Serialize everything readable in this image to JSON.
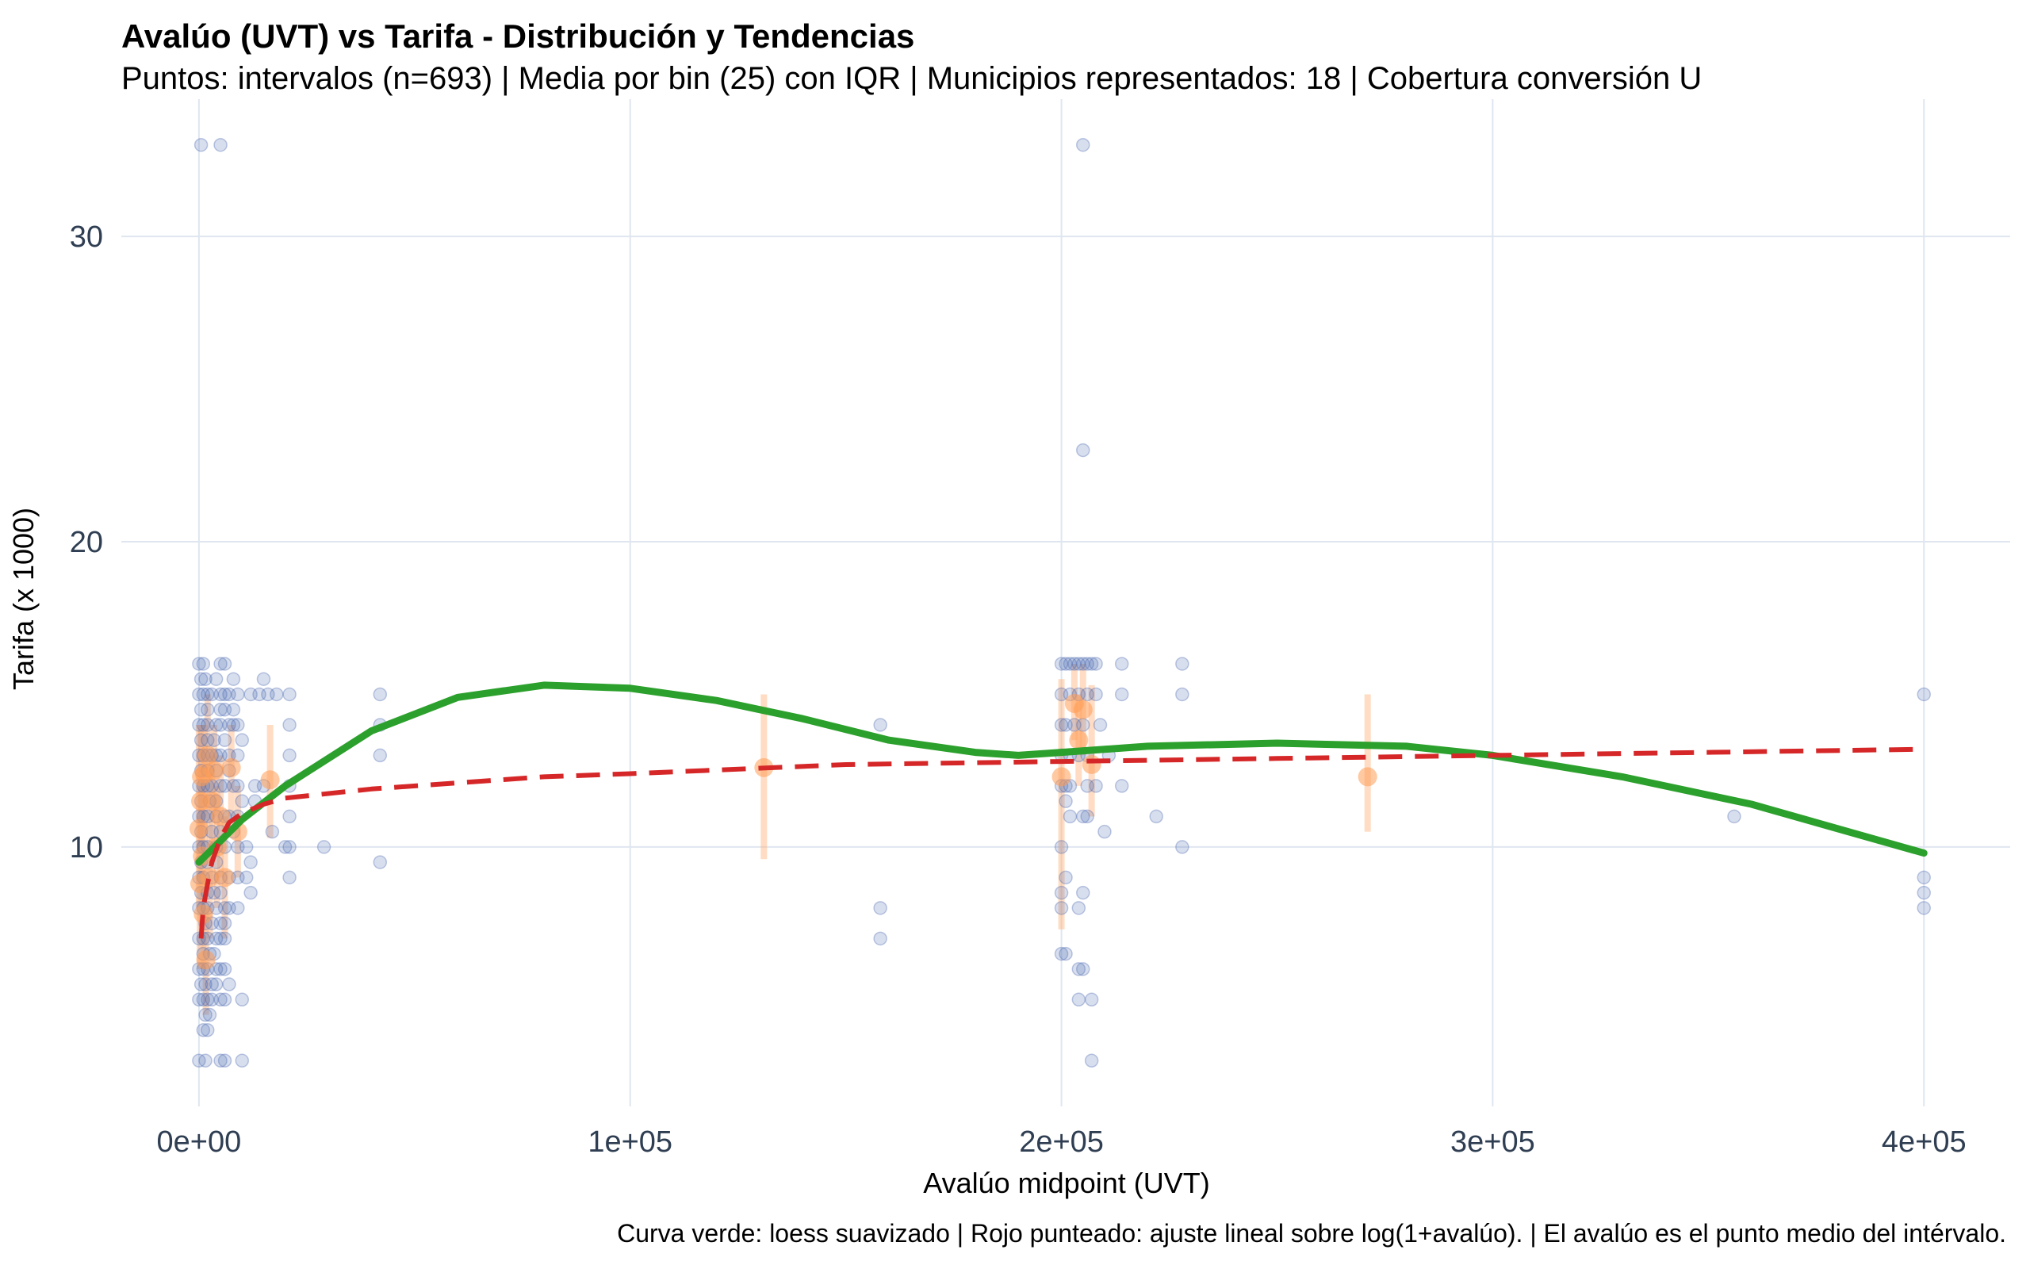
{
  "chart_data": {
    "type": "scatter",
    "title": "Avalúo (UVT) vs Tarifa - Distribución y Tendencias",
    "subtitle": "Puntos: intervalos (n=693) | Media por bin (25) con IQR | Municipios representados: 18 | Cobertura conversión U",
    "xlabel": "Avalúo midpoint (UVT)",
    "ylabel": "Tarifa (x 1000)",
    "caption": "Curva verde: loess suavizado | Rojo punteado: ajuste lineal sobre log(1+avalúo). | El avalúo es el punto medio del intérvalo.",
    "xlim": [
      -18000,
      420000
    ],
    "ylim": [
      1.5,
      34.5
    ],
    "x_ticks": [
      0,
      100000,
      200000,
      300000,
      400000
    ],
    "x_tick_labels": [
      "0e+00",
      "1e+05",
      "2e+05",
      "3e+05",
      "4e+05"
    ],
    "y_ticks": [
      10,
      20,
      30
    ],
    "y_tick_labels": [
      "10",
      "20",
      "30"
    ],
    "grid": true,
    "colors": {
      "points": "#4a67b0",
      "bin_means": "#ff9c55",
      "iqr": "#ffb27a",
      "loess": "#2ca02c",
      "log_fit": "#d62728",
      "grid": "#dfe6f0",
      "tick_text": "#2f3e52"
    },
    "series": [
      {
        "name": "intervalos",
        "kind": "points",
        "points": [
          [
            0,
            3
          ],
          [
            1500,
            3
          ],
          [
            5000,
            3
          ],
          [
            6000,
            3
          ],
          [
            10000,
            3
          ],
          [
            500,
            33
          ],
          [
            5000,
            33
          ],
          [
            1000,
            4
          ],
          [
            2000,
            4
          ],
          [
            1500,
            4.5
          ],
          [
            2500,
            4.5
          ],
          [
            0,
            5
          ],
          [
            1000,
            5
          ],
          [
            2000,
            5
          ],
          [
            3000,
            5
          ],
          [
            5000,
            5
          ],
          [
            6000,
            5
          ],
          [
            10000,
            5
          ],
          [
            500,
            5.5
          ],
          [
            1500,
            5.5
          ],
          [
            3000,
            5.5
          ],
          [
            4000,
            5.5
          ],
          [
            7000,
            5.5
          ],
          [
            0,
            6
          ],
          [
            1000,
            6
          ],
          [
            2000,
            6
          ],
          [
            4000,
            6
          ],
          [
            5000,
            6
          ],
          [
            6000,
            6
          ],
          [
            1000,
            6.5
          ],
          [
            2500,
            6.5
          ],
          [
            3500,
            6.5
          ],
          [
            0,
            7
          ],
          [
            1000,
            7
          ],
          [
            2000,
            7
          ],
          [
            4000,
            7
          ],
          [
            5000,
            7
          ],
          [
            6000,
            7
          ],
          [
            1500,
            7.5
          ],
          [
            3000,
            7.5
          ],
          [
            5000,
            7.5
          ],
          [
            6000,
            7.5
          ],
          [
            0,
            8
          ],
          [
            1000,
            8
          ],
          [
            2000,
            8
          ],
          [
            4000,
            8
          ],
          [
            6000,
            8
          ],
          [
            7000,
            8
          ],
          [
            9000,
            8
          ],
          [
            500,
            8.5
          ],
          [
            2000,
            8.5
          ],
          [
            3500,
            8.5
          ],
          [
            5000,
            8.5
          ],
          [
            12000,
            8.5
          ],
          [
            0,
            9
          ],
          [
            1000,
            9
          ],
          [
            3000,
            9
          ],
          [
            5000,
            9
          ],
          [
            7000,
            9
          ],
          [
            9000,
            9
          ],
          [
            11000,
            9
          ],
          [
            21000,
            9
          ],
          [
            500,
            9.5
          ],
          [
            2000,
            9.5
          ],
          [
            4000,
            9.5
          ],
          [
            12000,
            9.5
          ],
          [
            42000,
            9.5
          ],
          [
            0,
            10
          ],
          [
            1000,
            10
          ],
          [
            2000,
            10
          ],
          [
            4000,
            10
          ],
          [
            6000,
            10
          ],
          [
            9000,
            10
          ],
          [
            11000,
            10
          ],
          [
            20000,
            10
          ],
          [
            21000,
            10
          ],
          [
            29000,
            10
          ],
          [
            500,
            10.5
          ],
          [
            3000,
            10.5
          ],
          [
            5000,
            10.5
          ],
          [
            8000,
            10.5
          ],
          [
            17000,
            10.5
          ],
          [
            0,
            11
          ],
          [
            1000,
            11
          ],
          [
            2000,
            11
          ],
          [
            4000,
            11
          ],
          [
            6000,
            11
          ],
          [
            7000,
            11
          ],
          [
            9000,
            11
          ],
          [
            21000,
            11
          ],
          [
            500,
            11.5
          ],
          [
            2500,
            11.5
          ],
          [
            4000,
            11.5
          ],
          [
            10000,
            11.5
          ],
          [
            13000,
            11.5
          ],
          [
            0,
            12
          ],
          [
            1000,
            12
          ],
          [
            2000,
            12
          ],
          [
            3000,
            12
          ],
          [
            5000,
            12
          ],
          [
            6000,
            12
          ],
          [
            8000,
            12
          ],
          [
            9000,
            12
          ],
          [
            13000,
            12
          ],
          [
            15000,
            12
          ],
          [
            21000,
            12
          ],
          [
            500,
            12.5
          ],
          [
            2000,
            12.5
          ],
          [
            4000,
            12.5
          ],
          [
            7000,
            12.5
          ],
          [
            0,
            13
          ],
          [
            1000,
            13
          ],
          [
            2000,
            13
          ],
          [
            3000,
            13
          ],
          [
            4000,
            13
          ],
          [
            5000,
            13
          ],
          [
            7000,
            13
          ],
          [
            9000,
            13
          ],
          [
            21000,
            13
          ],
          [
            42000,
            13
          ],
          [
            500,
            13.5
          ],
          [
            2000,
            13.5
          ],
          [
            3500,
            13.5
          ],
          [
            6000,
            13.5
          ],
          [
            10000,
            13.5
          ],
          [
            0,
            14
          ],
          [
            1000,
            14
          ],
          [
            2000,
            14
          ],
          [
            4000,
            14
          ],
          [
            5000,
            14
          ],
          [
            7000,
            14
          ],
          [
            8000,
            14
          ],
          [
            9000,
            14
          ],
          [
            21000,
            14
          ],
          [
            42000,
            14
          ],
          [
            500,
            14.5
          ],
          [
            2000,
            14.5
          ],
          [
            5000,
            14.5
          ],
          [
            6000,
            14.5
          ],
          [
            8000,
            14.5
          ],
          [
            0,
            15
          ],
          [
            1000,
            15
          ],
          [
            2000,
            15
          ],
          [
            3000,
            15
          ],
          [
            5000,
            15
          ],
          [
            6000,
            15
          ],
          [
            7000,
            15
          ],
          [
            9000,
            15
          ],
          [
            12000,
            15
          ],
          [
            14000,
            15
          ],
          [
            16000,
            15
          ],
          [
            18000,
            15
          ],
          [
            21000,
            15
          ],
          [
            42000,
            15
          ],
          [
            500,
            15.5
          ],
          [
            1500,
            15.5
          ],
          [
            4000,
            15.5
          ],
          [
            8000,
            15.5
          ],
          [
            15000,
            15.5
          ],
          [
            0,
            16
          ],
          [
            1000,
            16
          ],
          [
            5000,
            16
          ],
          [
            6000,
            16
          ],
          [
            158000,
            14
          ],
          [
            158000,
            8
          ],
          [
            158000,
            7
          ],
          [
            200000,
            16
          ],
          [
            201000,
            16
          ],
          [
            202000,
            16
          ],
          [
            203000,
            16
          ],
          [
            204000,
            16
          ],
          [
            205000,
            16
          ],
          [
            206000,
            16
          ],
          [
            207000,
            16
          ],
          [
            208000,
            16
          ],
          [
            214000,
            16
          ],
          [
            228000,
            16
          ],
          [
            200000,
            15
          ],
          [
            202000,
            15
          ],
          [
            204000,
            15
          ],
          [
            206000,
            15
          ],
          [
            208000,
            15
          ],
          [
            214000,
            15
          ],
          [
            228000,
            15
          ],
          [
            200000,
            14
          ],
          [
            201000,
            14
          ],
          [
            203000,
            14
          ],
          [
            205000,
            14
          ],
          [
            209000,
            14
          ],
          [
            200000,
            13
          ],
          [
            202000,
            13
          ],
          [
            204000,
            13
          ],
          [
            206000,
            13
          ],
          [
            211000,
            13
          ],
          [
            200000,
            12
          ],
          [
            201000,
            12
          ],
          [
            202000,
            12
          ],
          [
            206000,
            12
          ],
          [
            208000,
            12
          ],
          [
            214000,
            12
          ],
          [
            201000,
            11.5
          ],
          [
            202000,
            11
          ],
          [
            205000,
            11
          ],
          [
            206000,
            11
          ],
          [
            210000,
            10.5
          ],
          [
            222000,
            11
          ],
          [
            228000,
            10
          ],
          [
            200000,
            10
          ],
          [
            201000,
            9
          ],
          [
            200000,
            8.5
          ],
          [
            205000,
            8.5
          ],
          [
            204000,
            8
          ],
          [
            200000,
            8
          ],
          [
            200000,
            6.5
          ],
          [
            201000,
            6.5
          ],
          [
            204000,
            6
          ],
          [
            205000,
            6
          ],
          [
            204000,
            5
          ],
          [
            207000,
            5
          ],
          [
            207000,
            3
          ],
          [
            205000,
            23
          ],
          [
            205000,
            33
          ],
          [
            356000,
            11
          ],
          [
            400000,
            15
          ],
          [
            400000,
            9
          ],
          [
            400000,
            8.5
          ],
          [
            400000,
            8
          ]
        ]
      },
      {
        "name": "media por bin",
        "kind": "bin_means_iqr",
        "points": [
          [
            0,
            10.6,
            8,
            14
          ],
          [
            200,
            8.8,
            6,
            11
          ],
          [
            400,
            11.5,
            9,
            14
          ],
          [
            600,
            12.3,
            10,
            14
          ],
          [
            800,
            9.7,
            7.5,
            12
          ],
          [
            1000,
            7.8,
            6,
            10
          ],
          [
            1300,
            12.4,
            10,
            14
          ],
          [
            1600,
            6.3,
            4.5,
            8
          ],
          [
            2000,
            13.0,
            11,
            15
          ],
          [
            2500,
            9.0,
            7,
            11
          ],
          [
            3000,
            11.5,
            9.5,
            13
          ],
          [
            3500,
            12.5,
            11,
            14
          ],
          [
            4200,
            10.0,
            8,
            12
          ],
          [
            5000,
            11.0,
            9,
            13
          ],
          [
            6000,
            9.0,
            7,
            11
          ],
          [
            7500,
            12.6,
            11,
            14
          ],
          [
            9000,
            10.5,
            9,
            12
          ],
          [
            16500,
            12.2,
            10.3,
            14
          ],
          [
            131000,
            12.6,
            9.6,
            15
          ],
          [
            200000,
            12.3,
            7.3,
            15.5
          ],
          [
            203000,
            14.7,
            13.5,
            16
          ],
          [
            204000,
            13.5,
            12,
            15
          ],
          [
            205000,
            14.5,
            13,
            16
          ],
          [
            207000,
            12.7,
            11,
            15.3
          ],
          [
            271000,
            12.3,
            10.5,
            15
          ]
        ]
      },
      {
        "name": "loess",
        "kind": "line",
        "points": [
          [
            0,
            9.5
          ],
          [
            5000,
            10.2
          ],
          [
            10000,
            10.9
          ],
          [
            20000,
            12.0
          ],
          [
            40000,
            13.8
          ],
          [
            60000,
            14.9
          ],
          [
            80000,
            15.3
          ],
          [
            100000,
            15.2
          ],
          [
            120000,
            14.8
          ],
          [
            140000,
            14.2
          ],
          [
            160000,
            13.5
          ],
          [
            180000,
            13.1
          ],
          [
            190000,
            13.0
          ],
          [
            200000,
            13.1
          ],
          [
            220000,
            13.3
          ],
          [
            250000,
            13.4
          ],
          [
            280000,
            13.3
          ],
          [
            300000,
            13.0
          ],
          [
            330000,
            12.3
          ],
          [
            360000,
            11.4
          ],
          [
            400000,
            9.8
          ]
        ]
      },
      {
        "name": "ajuste lineal log(1+avalúo)",
        "kind": "dashed_line",
        "points": [
          [
            500,
            7.0
          ],
          [
            1000,
            8.0
          ],
          [
            2000,
            8.8
          ],
          [
            3000,
            9.5
          ],
          [
            5000,
            10.3
          ],
          [
            7000,
            10.8
          ],
          [
            10000,
            11.1
          ],
          [
            15000,
            11.4
          ],
          [
            20000,
            11.6
          ],
          [
            40000,
            11.9
          ],
          [
            60000,
            12.1
          ],
          [
            80000,
            12.3
          ],
          [
            100000,
            12.4
          ],
          [
            150000,
            12.7
          ],
          [
            200000,
            12.8
          ],
          [
            250000,
            12.9
          ],
          [
            300000,
            13.0
          ],
          [
            350000,
            13.1
          ],
          [
            400000,
            13.2
          ]
        ]
      }
    ]
  }
}
